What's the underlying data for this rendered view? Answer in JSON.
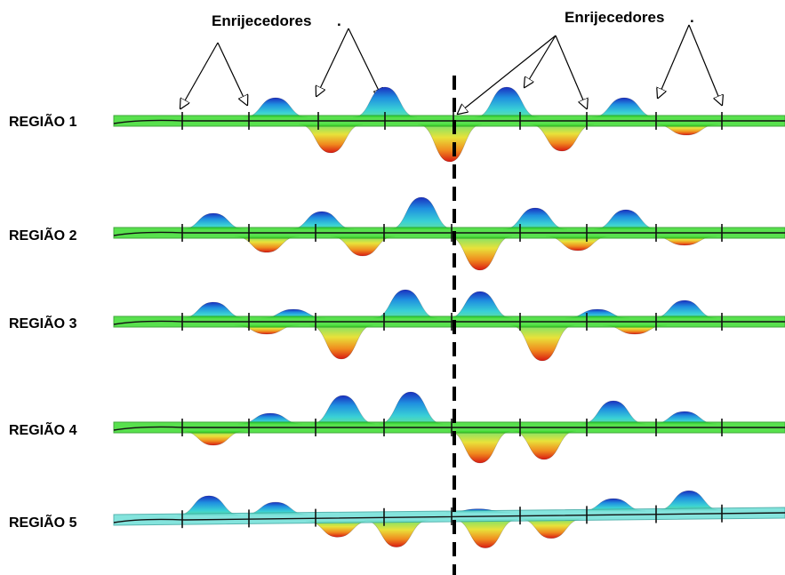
{
  "callouts": [
    {
      "title": "Enrijecedores",
      "suffix": "."
    },
    {
      "title": "Enrijecedores",
      "suffix": "."
    }
  ],
  "regions": [
    {
      "label": "REGIÃO 1",
      "color": "#3bdc2e",
      "colorDark": "#1f9a19"
    },
    {
      "label": "REGIÃO 2",
      "color": "#3bdc2e",
      "colorDark": "#1f9a19"
    },
    {
      "label": "REGIÃO 3",
      "color": "#3bdc2e",
      "colorDark": "#1f9a19"
    },
    {
      "label": "REGIÃO 4",
      "color": "#3bdc2e",
      "colorDark": "#1f9a19"
    },
    {
      "label": "REGIÃO 5",
      "color": "#6fe0d8",
      "colorDark": "#3aa8a2"
    }
  ],
  "buckleGradient": [
    "#1a2fbf",
    "#1f8fe0",
    "#39d0d6",
    "#7be36a",
    "#e8e23a",
    "#f08a1e",
    "#d81a12"
  ],
  "divider": {
    "style": "dashed",
    "color": "#000000"
  }
}
